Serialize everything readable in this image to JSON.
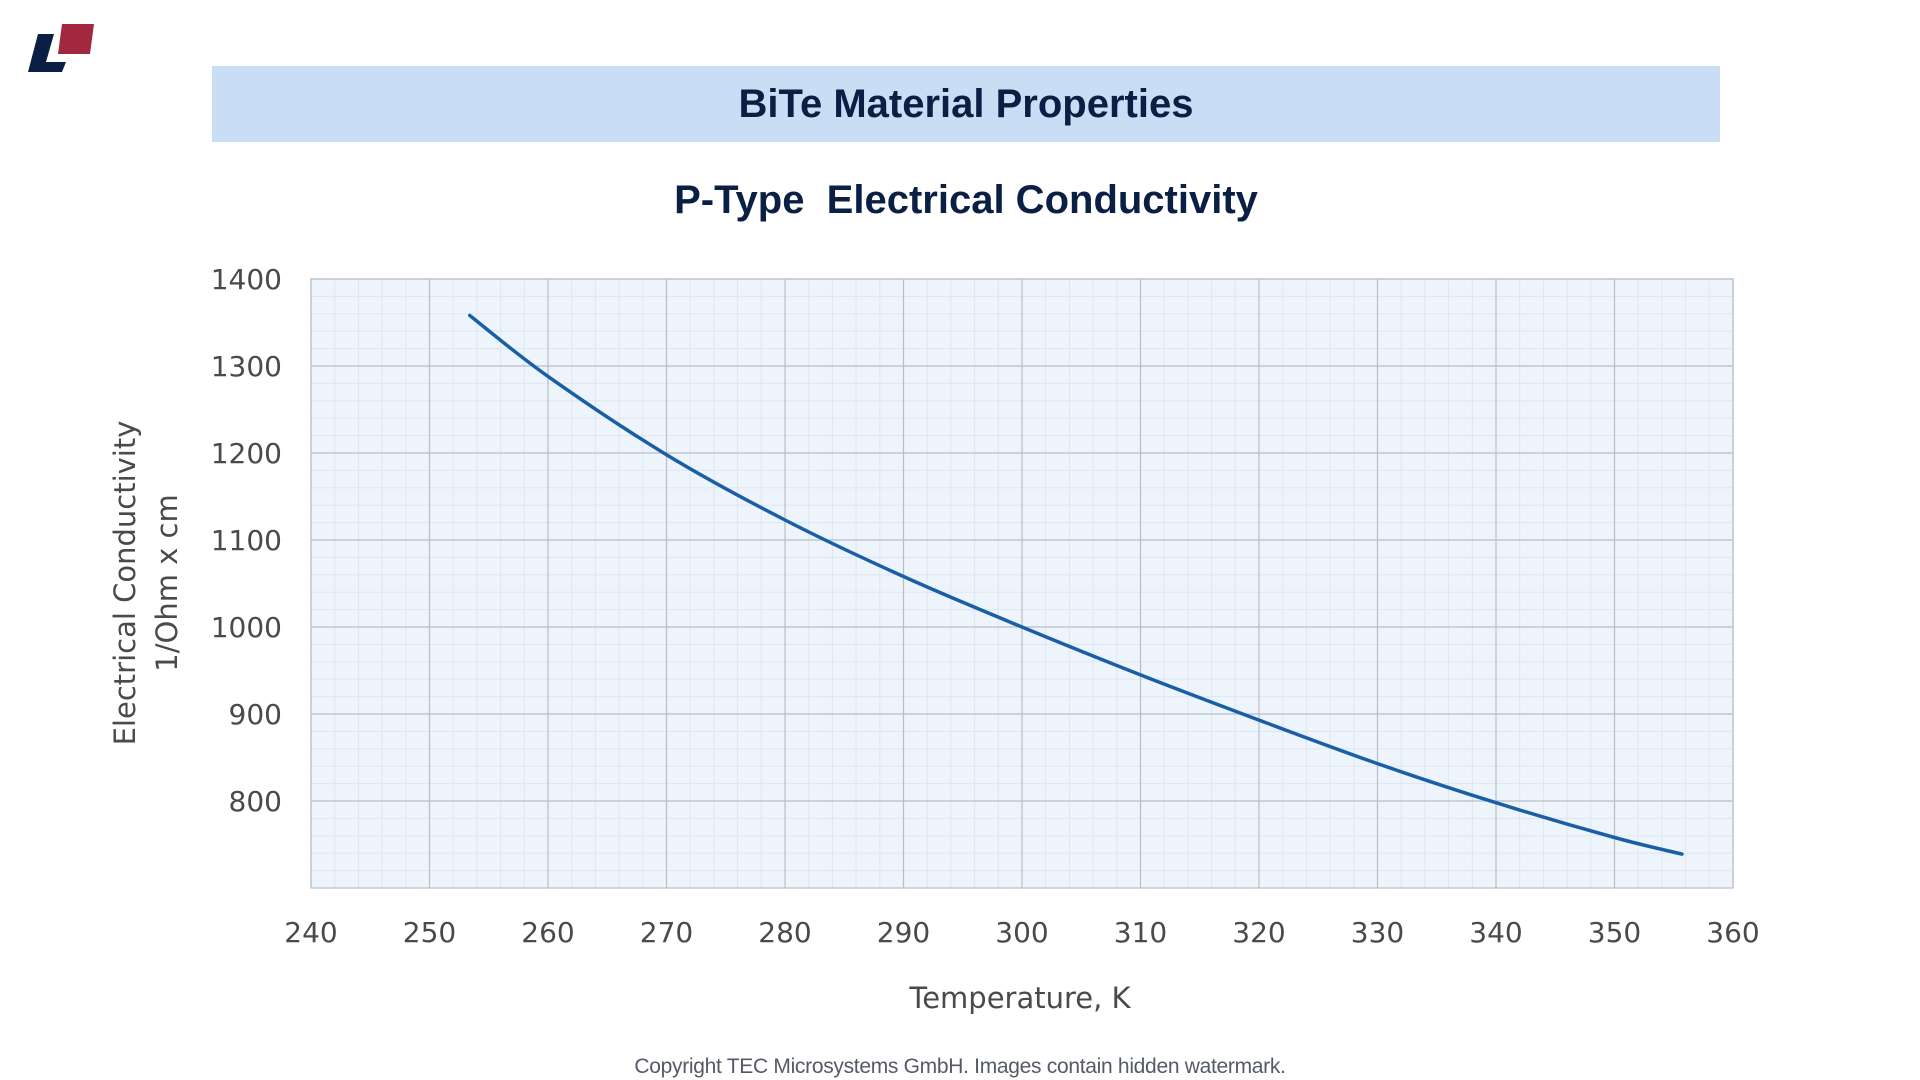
{
  "header": {
    "title": "BiTe Material Properties"
  },
  "colors": {
    "title_bar_bg": "#c9ddf4",
    "title_text": "#0b1f45",
    "plot_bg": "#eef4fb",
    "line": "#1a5fa6",
    "logo_red": "#a3283f",
    "logo_navy": "#0b1f45"
  },
  "footer": {
    "copyright": "Copyright TEC Microsystems GmbH. Images contain hidden watermark."
  },
  "chart_data": {
    "type": "line",
    "title": "P-Type  Electrical Conductivity",
    "xlabel": "Temperature, K",
    "ylabel": [
      "Electrical Conductivity",
      "1/Ohm x cm"
    ],
    "xlim": [
      240,
      360
    ],
    "ylim": [
      700,
      1400
    ],
    "x_ticks": [
      240,
      250,
      260,
      270,
      280,
      290,
      300,
      310,
      320,
      330,
      340,
      350,
      360
    ],
    "y_ticks": [
      800,
      900,
      1000,
      1100,
      1200,
      1300,
      1400
    ],
    "grid": true,
    "series": [
      {
        "name": "P-Type",
        "x": [
          253.4,
          260,
          270,
          280,
          290,
          300,
          310,
          320,
          330,
          340,
          350,
          355.7
        ],
        "values": [
          1358,
          1288,
          1198,
          1123,
          1058,
          1000,
          945,
          893,
          843,
          798,
          758,
          739
        ]
      }
    ]
  }
}
